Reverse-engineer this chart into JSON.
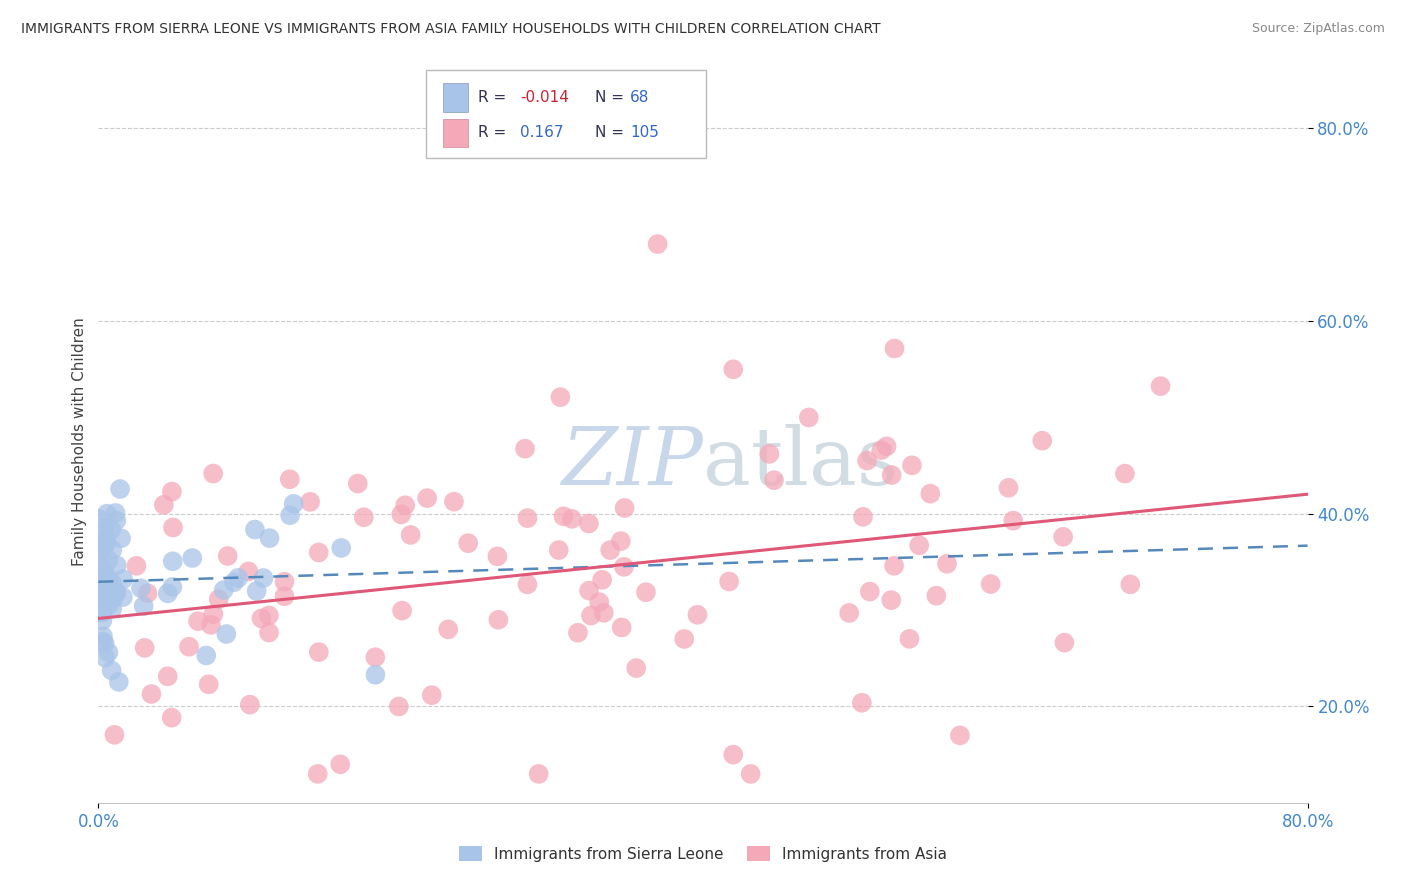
{
  "title": "IMMIGRANTS FROM SIERRA LEONE VS IMMIGRANTS FROM ASIA FAMILY HOUSEHOLDS WITH CHILDREN CORRELATION CHART",
  "source": "Source: ZipAtlas.com",
  "ylabel": "Family Households with Children",
  "ytick_values": [
    0.2,
    0.4,
    0.6,
    0.8
  ],
  "xlim": [
    0.0,
    0.8
  ],
  "ylim": [
    0.1,
    0.85
  ],
  "color_sierra": "#a8c4e8",
  "color_asia": "#f4a8b8",
  "line_color_sierra": "#5588bb",
  "line_color_asia": "#e05878",
  "watermark_color": "#c8d8ea",
  "background_color": "#ffffff",
  "grid_color": "#cccccc",
  "title_color": "#333333",
  "axis_tick_color": "#4488cc",
  "legend_text_color": "#3366cc",
  "legend_r_color": "#cc2233",
  "legend_n_color": "#3366cc"
}
